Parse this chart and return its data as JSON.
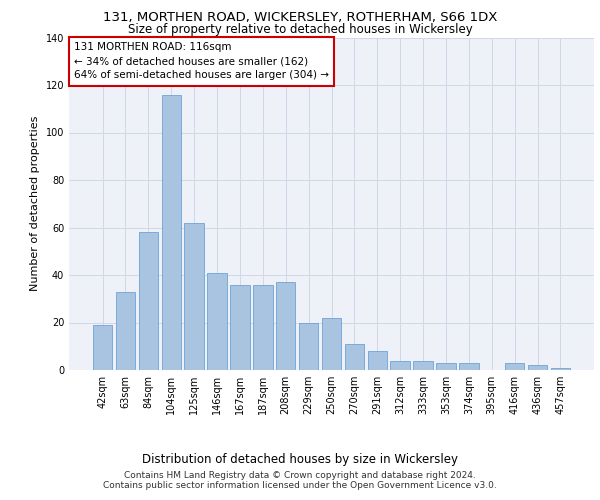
{
  "title1": "131, MORTHEN ROAD, WICKERSLEY, ROTHERHAM, S66 1DX",
  "title2": "Size of property relative to detached houses in Wickersley",
  "xlabel": "Distribution of detached houses by size in Wickersley",
  "ylabel": "Number of detached properties",
  "categories": [
    "42sqm",
    "63sqm",
    "84sqm",
    "104sqm",
    "125sqm",
    "146sqm",
    "167sqm",
    "187sqm",
    "208sqm",
    "229sqm",
    "250sqm",
    "270sqm",
    "291sqm",
    "312sqm",
    "333sqm",
    "353sqm",
    "374sqm",
    "395sqm",
    "416sqm",
    "436sqm",
    "457sqm"
  ],
  "values": [
    19,
    33,
    58,
    116,
    62,
    41,
    36,
    36,
    37,
    20,
    22,
    11,
    8,
    4,
    4,
    3,
    3,
    0,
    3,
    2,
    1
  ],
  "bar_color": "#a8c4e0",
  "bar_edge_color": "#5a9ad4",
  "annotation_box_text": "131 MORTHEN ROAD: 116sqm\n← 34% of detached houses are smaller (162)\n64% of semi-detached houses are larger (304) →",
  "annotation_box_color": "#ffffff",
  "annotation_box_edge_color": "#cc0000",
  "ylim": [
    0,
    140
  ],
  "yticks": [
    0,
    20,
    40,
    60,
    80,
    100,
    120,
    140
  ],
  "grid_color": "#d0d8e8",
  "background_color": "#eef2f8",
  "footer_line1": "Contains HM Land Registry data © Crown copyright and database right 2024.",
  "footer_line2": "Contains public sector information licensed under the Open Government Licence v3.0.",
  "title_fontsize": 9.5,
  "subtitle_fontsize": 8.5,
  "xlabel_fontsize": 8.5,
  "ylabel_fontsize": 8,
  "tick_fontsize": 7,
  "footer_fontsize": 6.5,
  "annotation_fontsize": 7.5
}
